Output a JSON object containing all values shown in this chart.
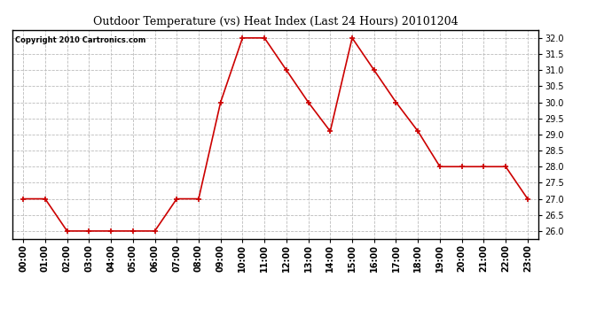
{
  "title": "Outdoor Temperature (vs) Heat Index (Last 24 Hours) 20101204",
  "copyright_text": "Copyright 2010 Cartronics.com",
  "x_labels": [
    "00:00",
    "01:00",
    "02:00",
    "03:00",
    "04:00",
    "05:00",
    "06:00",
    "07:00",
    "08:00",
    "09:00",
    "10:00",
    "11:00",
    "12:00",
    "13:00",
    "14:00",
    "15:00",
    "16:00",
    "17:00",
    "18:00",
    "19:00",
    "20:00",
    "21:00",
    "22:00",
    "23:00"
  ],
  "y_values": [
    27.0,
    27.0,
    26.0,
    26.0,
    26.0,
    26.0,
    26.0,
    27.0,
    27.0,
    30.0,
    32.0,
    32.0,
    31.0,
    30.0,
    29.1,
    32.0,
    31.0,
    30.0,
    29.1,
    28.0,
    28.0,
    28.0,
    28.0,
    27.0
  ],
  "line_color": "#cc0000",
  "marker": "+",
  "marker_size": 5,
  "marker_color": "#cc0000",
  "ylim_min": 25.75,
  "ylim_max": 32.25,
  "yticks": [
    26.0,
    26.5,
    27.0,
    27.5,
    28.0,
    28.5,
    29.0,
    29.5,
    30.0,
    30.5,
    31.0,
    31.5,
    32.0
  ],
  "background_color": "#ffffff",
  "plot_bg_color": "#ffffff",
  "grid_color": "#bbbbbb",
  "title_fontsize": 9,
  "copyright_fontsize": 6,
  "tick_fontsize": 7,
  "line_width": 1.2
}
